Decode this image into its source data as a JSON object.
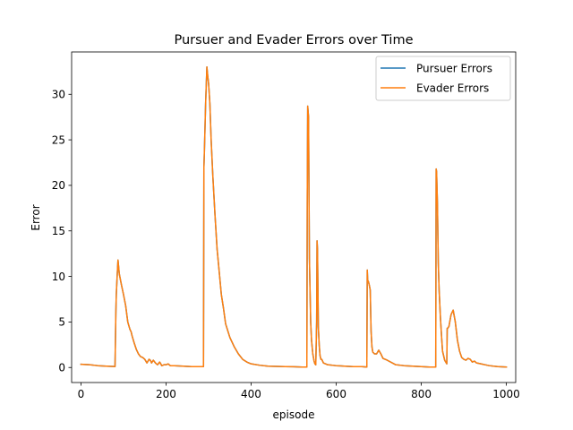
{
  "chart_data": {
    "type": "line",
    "title": "Pursuer and Evader Errors over Time",
    "xlabel": "episode",
    "ylabel": "Error",
    "xlim": [
      -22,
      1022
    ],
    "ylim": [
      -1.65,
      34.65
    ],
    "xticks": [
      0,
      200,
      400,
      600,
      800,
      1000
    ],
    "yticks": [
      0,
      5,
      10,
      15,
      20,
      25,
      30
    ],
    "grid": false,
    "legend_position": "upper right",
    "series": [
      {
        "name": "Pursuer Errors",
        "color": "#1f77b4",
        "x": [
          0,
          20,
          40,
          60,
          80,
          82,
          83,
          85,
          87,
          90,
          95,
          100,
          105,
          110,
          115,
          118,
          120,
          125,
          130,
          135,
          140,
          145,
          150,
          155,
          160,
          163,
          166,
          170,
          175,
          180,
          185,
          190,
          195,
          200,
          205,
          210,
          220,
          240,
          260,
          280,
          288,
          289,
          290,
          293,
          296,
          298,
          300,
          303,
          306,
          310,
          315,
          320,
          325,
          330,
          335,
          340,
          350,
          360,
          370,
          380,
          390,
          400,
          420,
          440,
          460,
          480,
          500,
          520,
          531,
          532,
          533,
          535,
          537,
          540,
          542,
          545,
          548,
          550,
          552,
          554,
          555,
          556,
          557,
          558,
          560,
          562,
          564,
          566,
          570,
          580,
          600,
          620,
          640,
          660,
          672,
          673,
          674,
          676,
          678,
          680,
          682,
          684,
          686,
          690,
          695,
          700,
          705,
          710,
          720,
          740,
          760,
          780,
          800,
          820,
          834,
          835,
          836,
          838,
          840,
          842,
          845,
          848,
          850,
          855,
          860,
          861,
          862,
          865,
          870,
          875,
          880,
          885,
          890,
          895,
          900,
          905,
          910,
          915,
          920,
          925,
          930,
          940,
          950,
          960,
          980,
          1000
        ],
        "y": [
          0.35,
          0.3,
          0.2,
          0.15,
          0.1,
          6.0,
          8.0,
          10.0,
          11.8,
          10.3,
          9.1,
          8.0,
          6.8,
          5.0,
          4.2,
          3.9,
          3.5,
          2.7,
          2.0,
          1.5,
          1.2,
          1.1,
          0.9,
          0.5,
          0.9,
          0.8,
          0.5,
          0.8,
          0.5,
          0.3,
          0.6,
          0.2,
          0.3,
          0.3,
          0.4,
          0.2,
          0.2,
          0.15,
          0.1,
          0.1,
          0.1,
          22.0,
          23.5,
          29.0,
          33.0,
          32.0,
          31.2,
          29.0,
          25.0,
          21.0,
          16.8,
          13.0,
          10.5,
          8.0,
          6.5,
          4.8,
          3.3,
          2.3,
          1.5,
          0.9,
          0.6,
          0.4,
          0.25,
          0.15,
          0.12,
          0.1,
          0.08,
          0.05,
          0.05,
          19.0,
          28.7,
          27.5,
          12.0,
          5.0,
          3.0,
          1.5,
          0.7,
          0.4,
          0.3,
          5.0,
          13.9,
          13.0,
          9.0,
          4.5,
          2.5,
          1.3,
          0.9,
          0.9,
          0.5,
          0.3,
          0.2,
          0.15,
          0.1,
          0.1,
          0.05,
          10.7,
          9.6,
          9.4,
          9.0,
          8.5,
          4.0,
          2.3,
          1.7,
          1.5,
          1.5,
          1.9,
          1.5,
          1.0,
          0.8,
          0.3,
          0.2,
          0.15,
          0.1,
          0.05,
          0.05,
          21.8,
          21.5,
          18.0,
          11.5,
          8.5,
          5.5,
          3.2,
          1.8,
          0.8,
          0.4,
          4.3,
          4.3,
          4.5,
          5.8,
          6.3,
          5.0,
          3.0,
          1.8,
          1.1,
          0.9,
          0.8,
          1.0,
          0.9,
          0.6,
          0.7,
          0.5,
          0.4,
          0.3,
          0.2,
          0.1,
          0.05
        ]
      },
      {
        "name": "Evader Errors",
        "color": "#ff7f0e",
        "x": [
          0,
          20,
          40,
          60,
          80,
          82,
          83,
          85,
          87,
          90,
          95,
          100,
          105,
          110,
          115,
          118,
          120,
          125,
          130,
          135,
          140,
          145,
          150,
          155,
          160,
          163,
          166,
          170,
          175,
          180,
          185,
          190,
          195,
          200,
          205,
          210,
          220,
          240,
          260,
          280,
          288,
          289,
          290,
          293,
          296,
          298,
          300,
          303,
          306,
          310,
          315,
          320,
          325,
          330,
          335,
          340,
          350,
          360,
          370,
          380,
          390,
          400,
          420,
          440,
          460,
          480,
          500,
          520,
          531,
          532,
          533,
          535,
          537,
          540,
          542,
          545,
          548,
          550,
          552,
          554,
          555,
          556,
          557,
          558,
          560,
          562,
          564,
          566,
          570,
          580,
          600,
          620,
          640,
          660,
          672,
          673,
          674,
          676,
          678,
          680,
          682,
          684,
          686,
          690,
          695,
          700,
          705,
          710,
          720,
          740,
          760,
          780,
          800,
          820,
          834,
          835,
          836,
          838,
          840,
          842,
          845,
          848,
          850,
          855,
          860,
          861,
          862,
          865,
          870,
          875,
          880,
          885,
          890,
          895,
          900,
          905,
          910,
          915,
          920,
          925,
          930,
          940,
          950,
          960,
          980,
          1000
        ],
        "y": [
          0.35,
          0.3,
          0.2,
          0.15,
          0.1,
          6.0,
          8.0,
          10.0,
          11.8,
          10.3,
          9.1,
          8.0,
          6.8,
          5.0,
          4.2,
          3.9,
          3.5,
          2.7,
          2.0,
          1.5,
          1.2,
          1.1,
          0.9,
          0.5,
          0.9,
          0.8,
          0.5,
          0.8,
          0.5,
          0.3,
          0.6,
          0.2,
          0.3,
          0.3,
          0.4,
          0.2,
          0.2,
          0.15,
          0.1,
          0.1,
          0.1,
          22.0,
          23.5,
          29.0,
          33.0,
          32.0,
          31.2,
          29.0,
          25.0,
          21.0,
          16.8,
          13.0,
          10.5,
          8.0,
          6.5,
          4.8,
          3.3,
          2.3,
          1.5,
          0.9,
          0.6,
          0.4,
          0.25,
          0.15,
          0.12,
          0.1,
          0.08,
          0.05,
          0.05,
          19.0,
          28.7,
          27.5,
          12.0,
          5.0,
          3.0,
          1.5,
          0.7,
          0.4,
          0.3,
          5.0,
          13.9,
          13.0,
          9.0,
          4.5,
          2.5,
          1.3,
          0.9,
          0.9,
          0.5,
          0.3,
          0.2,
          0.15,
          0.1,
          0.1,
          0.05,
          10.7,
          9.6,
          9.4,
          9.0,
          8.5,
          4.0,
          2.3,
          1.7,
          1.5,
          1.5,
          1.9,
          1.5,
          1.0,
          0.8,
          0.3,
          0.2,
          0.15,
          0.1,
          0.05,
          0.05,
          21.8,
          21.5,
          18.0,
          11.5,
          8.5,
          5.5,
          3.2,
          1.8,
          0.8,
          0.4,
          4.3,
          4.3,
          4.5,
          5.8,
          6.3,
          5.0,
          3.0,
          1.8,
          1.1,
          0.9,
          0.8,
          1.0,
          0.9,
          0.6,
          0.7,
          0.5,
          0.4,
          0.3,
          0.2,
          0.1,
          0.05
        ]
      }
    ]
  }
}
